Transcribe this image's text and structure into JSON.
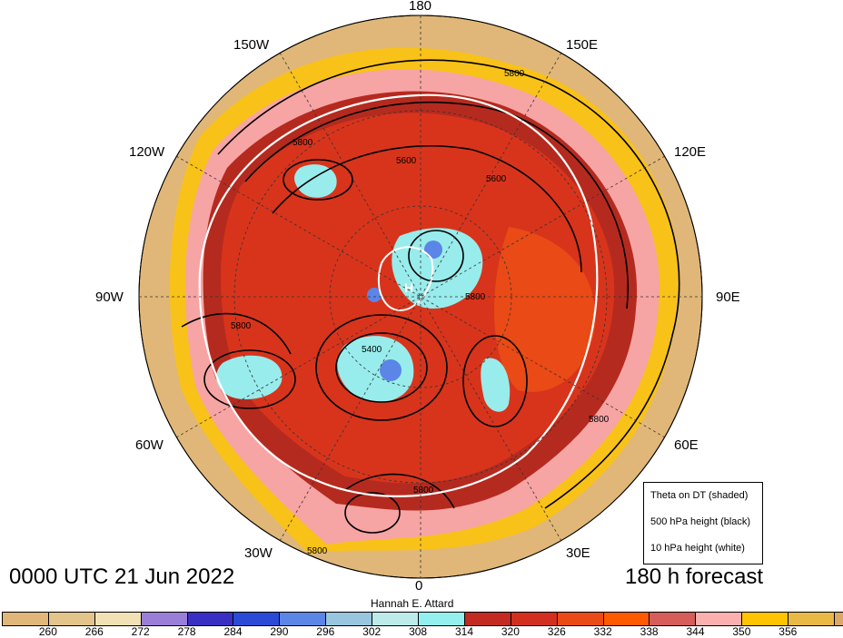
{
  "map": {
    "longitude_labels": {
      "top": "180",
      "bottom": "0",
      "left": "90W",
      "right": "90E",
      "upper_left": "150W",
      "upper_right": "150E",
      "mid_upper_left": "120W",
      "mid_upper_right": "120E",
      "lower_left": "60W",
      "lower_right": "60E",
      "bottom_left": "30W",
      "bottom_right": "30E"
    },
    "contour_labels": [
      "5800",
      "5600",
      "5600",
      "5800",
      "5800",
      "5400",
      "5800",
      "5800",
      "5800",
      "5800"
    ],
    "colors": {
      "background": "#e0b778",
      "core_cold": "#99ecec",
      "warm_red": "#d8341c",
      "deep_red": "#b52a1f",
      "pink": "#f7a4a4",
      "yellow": "#ffc400",
      "land_lines": "#000000"
    }
  },
  "legend": {
    "theta": "Theta on DT (shaded)",
    "height500": "500 hPa height (black)",
    "height10": "10 hPa height (white)"
  },
  "valid_time": "0000 UTC 21 Jun 2022",
  "forecast": "180 h forecast",
  "author": "Hannah E. Attard",
  "colorbar": {
    "colors": [
      "#e0b778",
      "#e3c48a",
      "#f3e1b6",
      "#9a7fd9",
      "#3a2fc2",
      "#2b4ad6",
      "#5b85e6",
      "#98c6df",
      "#bcebea",
      "#93f0ef",
      "#c32a21",
      "#d32f1f",
      "#ea4a16",
      "#ff5a00",
      "#d65d5a",
      "#fbb0b0",
      "#ffc400",
      "#e9b945",
      "#dda865"
    ],
    "ticks": [
      "260",
      "266",
      "272",
      "278",
      "284",
      "290",
      "296",
      "302",
      "308",
      "314",
      "320",
      "326",
      "332",
      "338",
      "344",
      "350",
      "356"
    ]
  }
}
